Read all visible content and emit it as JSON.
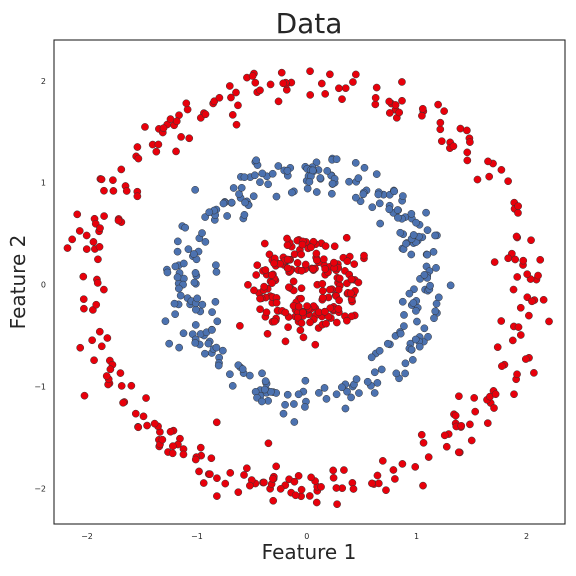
{
  "chart_data": {
    "type": "scatter",
    "title": "Data",
    "xlabel": "Feature 1",
    "ylabel": "Feature 2",
    "xlim": [
      -2.3,
      2.35
    ],
    "ylim": [
      -2.35,
      2.4
    ],
    "xticks": [
      -2,
      -1,
      0,
      1,
      2
    ],
    "yticks": [
      -2,
      -1,
      0,
      1,
      2
    ],
    "grid": false,
    "legend": "none",
    "colors": {
      "red": "#e8000b",
      "blue": "#4c72b0",
      "edge": "#333333"
    },
    "series": [
      {
        "color": "red",
        "ring": "outer",
        "radius": 2.0,
        "noise": 0.1,
        "count": 300
      },
      {
        "color": "blue",
        "ring": "middle",
        "radius": 1.1,
        "noise": 0.1,
        "count": 300
      },
      {
        "color": "red",
        "ring": "inner",
        "radius": 0.35,
        "noise": 0.12,
        "count": 200
      }
    ]
  }
}
